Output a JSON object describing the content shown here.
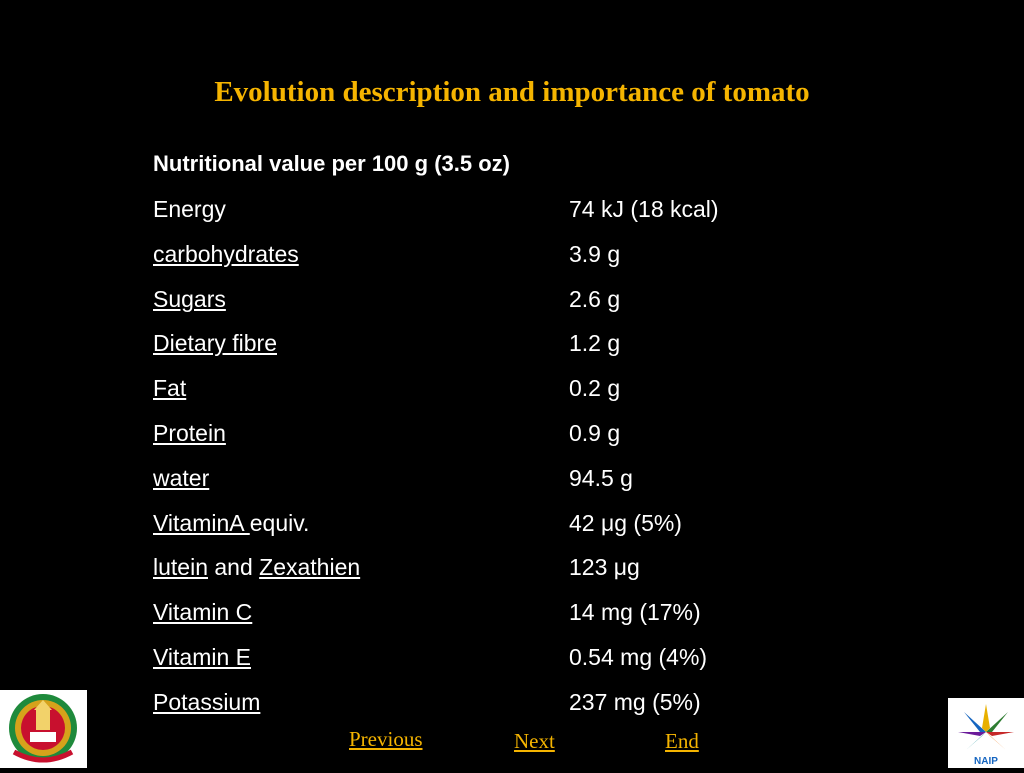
{
  "title": "Evolution description and importance of tomato",
  "table_heading": "Nutritional value per 100 g (3.5 oz)",
  "rows": [
    {
      "label": "Energy",
      "suffix": "",
      "conj": "",
      "label2": "",
      "value": "74 kJ (18 kcal)",
      "linked": false
    },
    {
      "label": "carbohydrates",
      "suffix": "",
      "conj": "",
      "label2": "",
      "value": "3.9 g",
      "linked": true
    },
    {
      "label": "Sugars",
      "suffix": "",
      "conj": "",
      "label2": "",
      "value": "2.6 g",
      "linked": true
    },
    {
      "label": "Dietary fibre",
      "suffix": "",
      "conj": "",
      "label2": "",
      "value": "1.2 g",
      "linked": true
    },
    {
      "label": "Fat",
      "suffix": "",
      "conj": "",
      "label2": "",
      "value": "0.2 g",
      "linked": true
    },
    {
      "label": "Protein",
      "suffix": "",
      "conj": "",
      "label2": "",
      "value": "0.9 g",
      "linked": true
    },
    {
      "label": "water",
      "suffix": "",
      "conj": "",
      "label2": "",
      "value": "94.5 g",
      "linked": true
    },
    {
      "label": "VitaminA ",
      "suffix": "equiv.",
      "conj": "",
      "label2": "",
      "value": "42 μg (5%)",
      "linked": true
    },
    {
      "label": "lutein",
      "suffix": "",
      "conj": " and ",
      "label2": "Zexathien",
      "value": "123 μg",
      "linked": true
    },
    {
      "label": "Vitamin C",
      "suffix": "",
      "conj": "",
      "label2": "",
      "value": "14 mg (17%)",
      "linked": true
    },
    {
      "label": "Vitamin E",
      "suffix": "",
      "conj": "",
      "label2": "",
      "value": "0.54 mg (4%)",
      "linked": true
    },
    {
      "label": "Potassium",
      "suffix": "",
      "conj": "",
      "label2": "",
      "value": "237 mg (5%)",
      "linked": true
    }
  ],
  "nav": {
    "previous": "Previous",
    "next": "Next",
    "end": "End"
  },
  "logos": {
    "left": "university-emblem",
    "right": "naip-logo",
    "right_text": "NAIP"
  },
  "colors": {
    "background": "#000000",
    "title": "#f5b400",
    "text": "#ffffff",
    "link": "#f5b400"
  }
}
